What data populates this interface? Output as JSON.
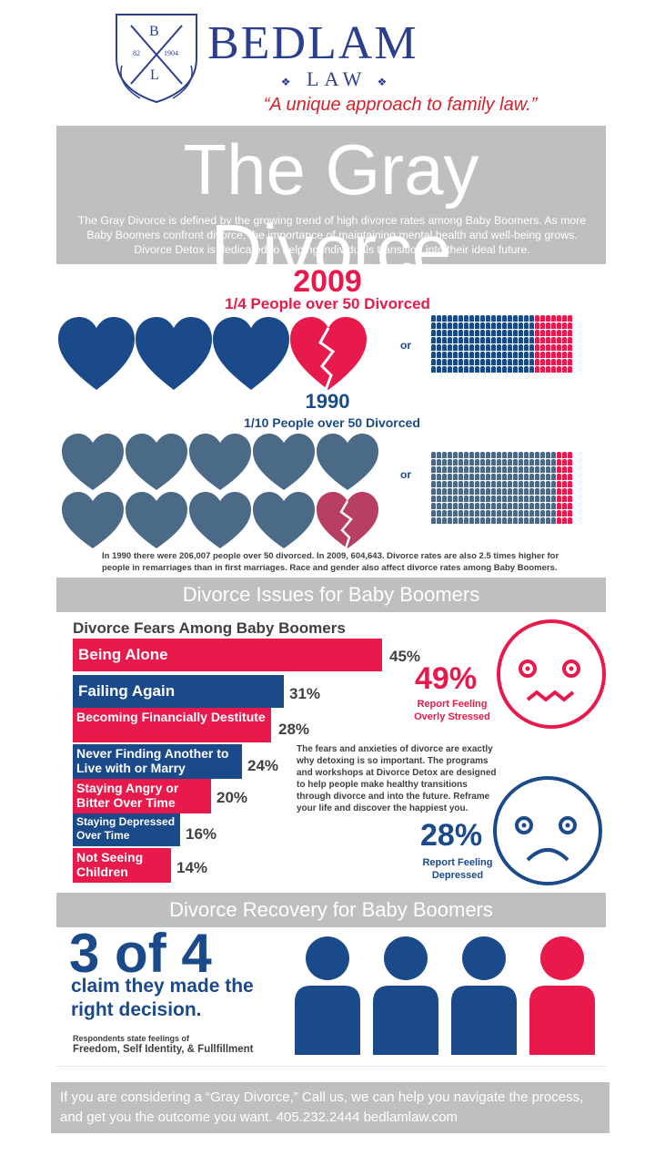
{
  "brand": {
    "crest_letters": [
      "B",
      "L"
    ],
    "crest_numbers": [
      "82",
      "1904"
    ],
    "name": "BEDLAM",
    "subname": "LAW",
    "tagline": "“A unique approach to family law.”",
    "colors": {
      "navy": "#2b3f8c",
      "red": "#e8194b",
      "blue": "#1a4a8a",
      "slate": "#4a6a87",
      "gray": "#bfbfbf"
    }
  },
  "hero": {
    "title": "The Gray Divorce",
    "description": "The Gray Divorce is defined by the growing trend of high divorce rates among Baby Boomers. As more Baby Boomers confront divorce, the importance of maintaining mental health and well-being grows. Divorce Detox is dedicated to helping individuals transition into their ideal future."
  },
  "stats": {
    "year_2009": "2009",
    "subtitle_2009": "1/4 People over 50 Divorced",
    "ratio_2009": 0.25,
    "or_label": "or",
    "year_1990": "1990",
    "subtitle_1990": "1/10 People over 50 Divorced",
    "ratio_1990": 0.1,
    "footnote": "In 1990 there were 206,007 people over 50 divorced. In 2009, 604,643. Divorce rates are also 2.5 times higher for people in remarriages than in first marriages. Race and gender also affect divorce rates among Baby Boomers."
  },
  "issues": {
    "section_title": "Divorce Issues for Baby Boomers",
    "chart_title": "Divorce Fears Among Baby Boomers",
    "fears": [
      {
        "label": "Being Alone",
        "value": 45,
        "display": "45%",
        "color": "red"
      },
      {
        "label": "Failing Again",
        "value": 31,
        "display": "31%",
        "color": "blue"
      },
      {
        "label": "Becoming Financially Destitute",
        "value": 28,
        "display": "28%",
        "color": "red"
      },
      {
        "label": "Never Finding Another to Live with or Marry",
        "value": 24,
        "display": "24%",
        "color": "blue"
      },
      {
        "label": "Staying Angry or Bitter Over Time",
        "value": 20,
        "display": "20%",
        "color": "red"
      },
      {
        "label": "Staying Depressed Over Time",
        "value": 16,
        "display": "16%",
        "color": "blue"
      },
      {
        "label": "Not Seeing Children",
        "value": 14,
        "display": "14%",
        "color": "red"
      }
    ],
    "stressed_pct": "49%",
    "stressed_label": "Report Feeling Overly Stressed",
    "body": "The fears and anxieties of divorce are exactly why detoxing is so important. The programs and workshops at Divorce Detox are designed to help people make healthy transitions through divorce and into the future. Reframe your life and discover the happiest you.",
    "depressed_pct": "28%",
    "depressed_label": "Report Feeling Depressed"
  },
  "recovery": {
    "section_title": "Divorce Recovery for Baby Boomers",
    "headline": "3 of 4",
    "claim": "claim they made the right decision.",
    "note_small": "Respondents state feelings of",
    "note_bold": "Freedom, Self Identity, & Fullfillment",
    "satisfied": 3,
    "total": 4
  },
  "cta": {
    "text": "If you are considering a “Gray Divorce,”  Call us, we can help you navigate the process, and get you the outcome you want.  405.232.2444 bedlamlaw.com"
  }
}
